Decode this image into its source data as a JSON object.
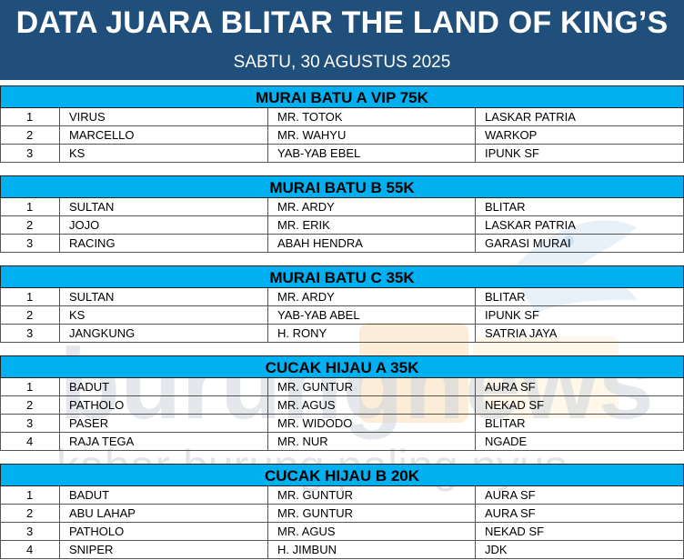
{
  "header": {
    "title": "DATA JUARA BLITAR THE LAND OF KING’S",
    "date": "SABTU, 30 AGUSTUS 2025"
  },
  "watermark": {
    "name": "burungnews",
    "tagline": "kabar burung paling nyus"
  },
  "sections": [
    {
      "title": "MURAI BATU A VIP 75K",
      "rows": [
        [
          "1",
          "VIRUS",
          "MR. TOTOK",
          "LASKAR PATRIA"
        ],
        [
          "2",
          "MARCELLO",
          "MR. WAHYU",
          "WARKOP"
        ],
        [
          "3",
          "KS",
          "YAB-YAB EBEL",
          "IPUNK SF"
        ]
      ]
    },
    {
      "title": "MURAI BATU B 55K",
      "rows": [
        [
          "1",
          "SULTAN",
          "MR. ARDY",
          "BLITAR"
        ],
        [
          "2",
          "JOJO",
          "MR. ERIK",
          "LASKAR PATRIA"
        ],
        [
          "3",
          "RACING",
          "ABAH HENDRA",
          "GARASI MURAI"
        ]
      ]
    },
    {
      "title": "MURAI BATU C 35K",
      "rows": [
        [
          "1",
          "SULTAN",
          "MR. ARDY",
          "BLITAR"
        ],
        [
          "2",
          "KS",
          "YAB-YAB ABEL",
          "IPUNK SF"
        ],
        [
          "3",
          "JANGKUNG",
          "H. RONY",
          "SATRIA JAYA"
        ]
      ]
    },
    {
      "title": "CUCAK HIJAU A 35K",
      "rows": [
        [
          "1",
          "BADUT",
          "MR. GUNTUR",
          "AURA SF"
        ],
        [
          "2",
          "PATHOLO",
          "MR. AGUS",
          "NEKAD SF"
        ],
        [
          "3",
          "PASER",
          "MR. WIDODO",
          "BLITAR"
        ],
        [
          "4",
          "RAJA TEGA",
          "MR. NUR",
          "NGADE"
        ]
      ]
    },
    {
      "title": "CUCAK HIJAU B 20K",
      "rows": [
        [
          "1",
          "BADUT",
          "MR. GUNTUR",
          "AURA SF"
        ],
        [
          "2",
          "ABU LAHAP",
          "MR. GUNTUR",
          "AURA SF"
        ],
        [
          "3",
          "PATHOLO",
          "MR. AGUS",
          "NEKAD SF"
        ],
        [
          "4",
          "SNIPER",
          "H. JIMBUN",
          "JDK"
        ]
      ]
    }
  ]
}
